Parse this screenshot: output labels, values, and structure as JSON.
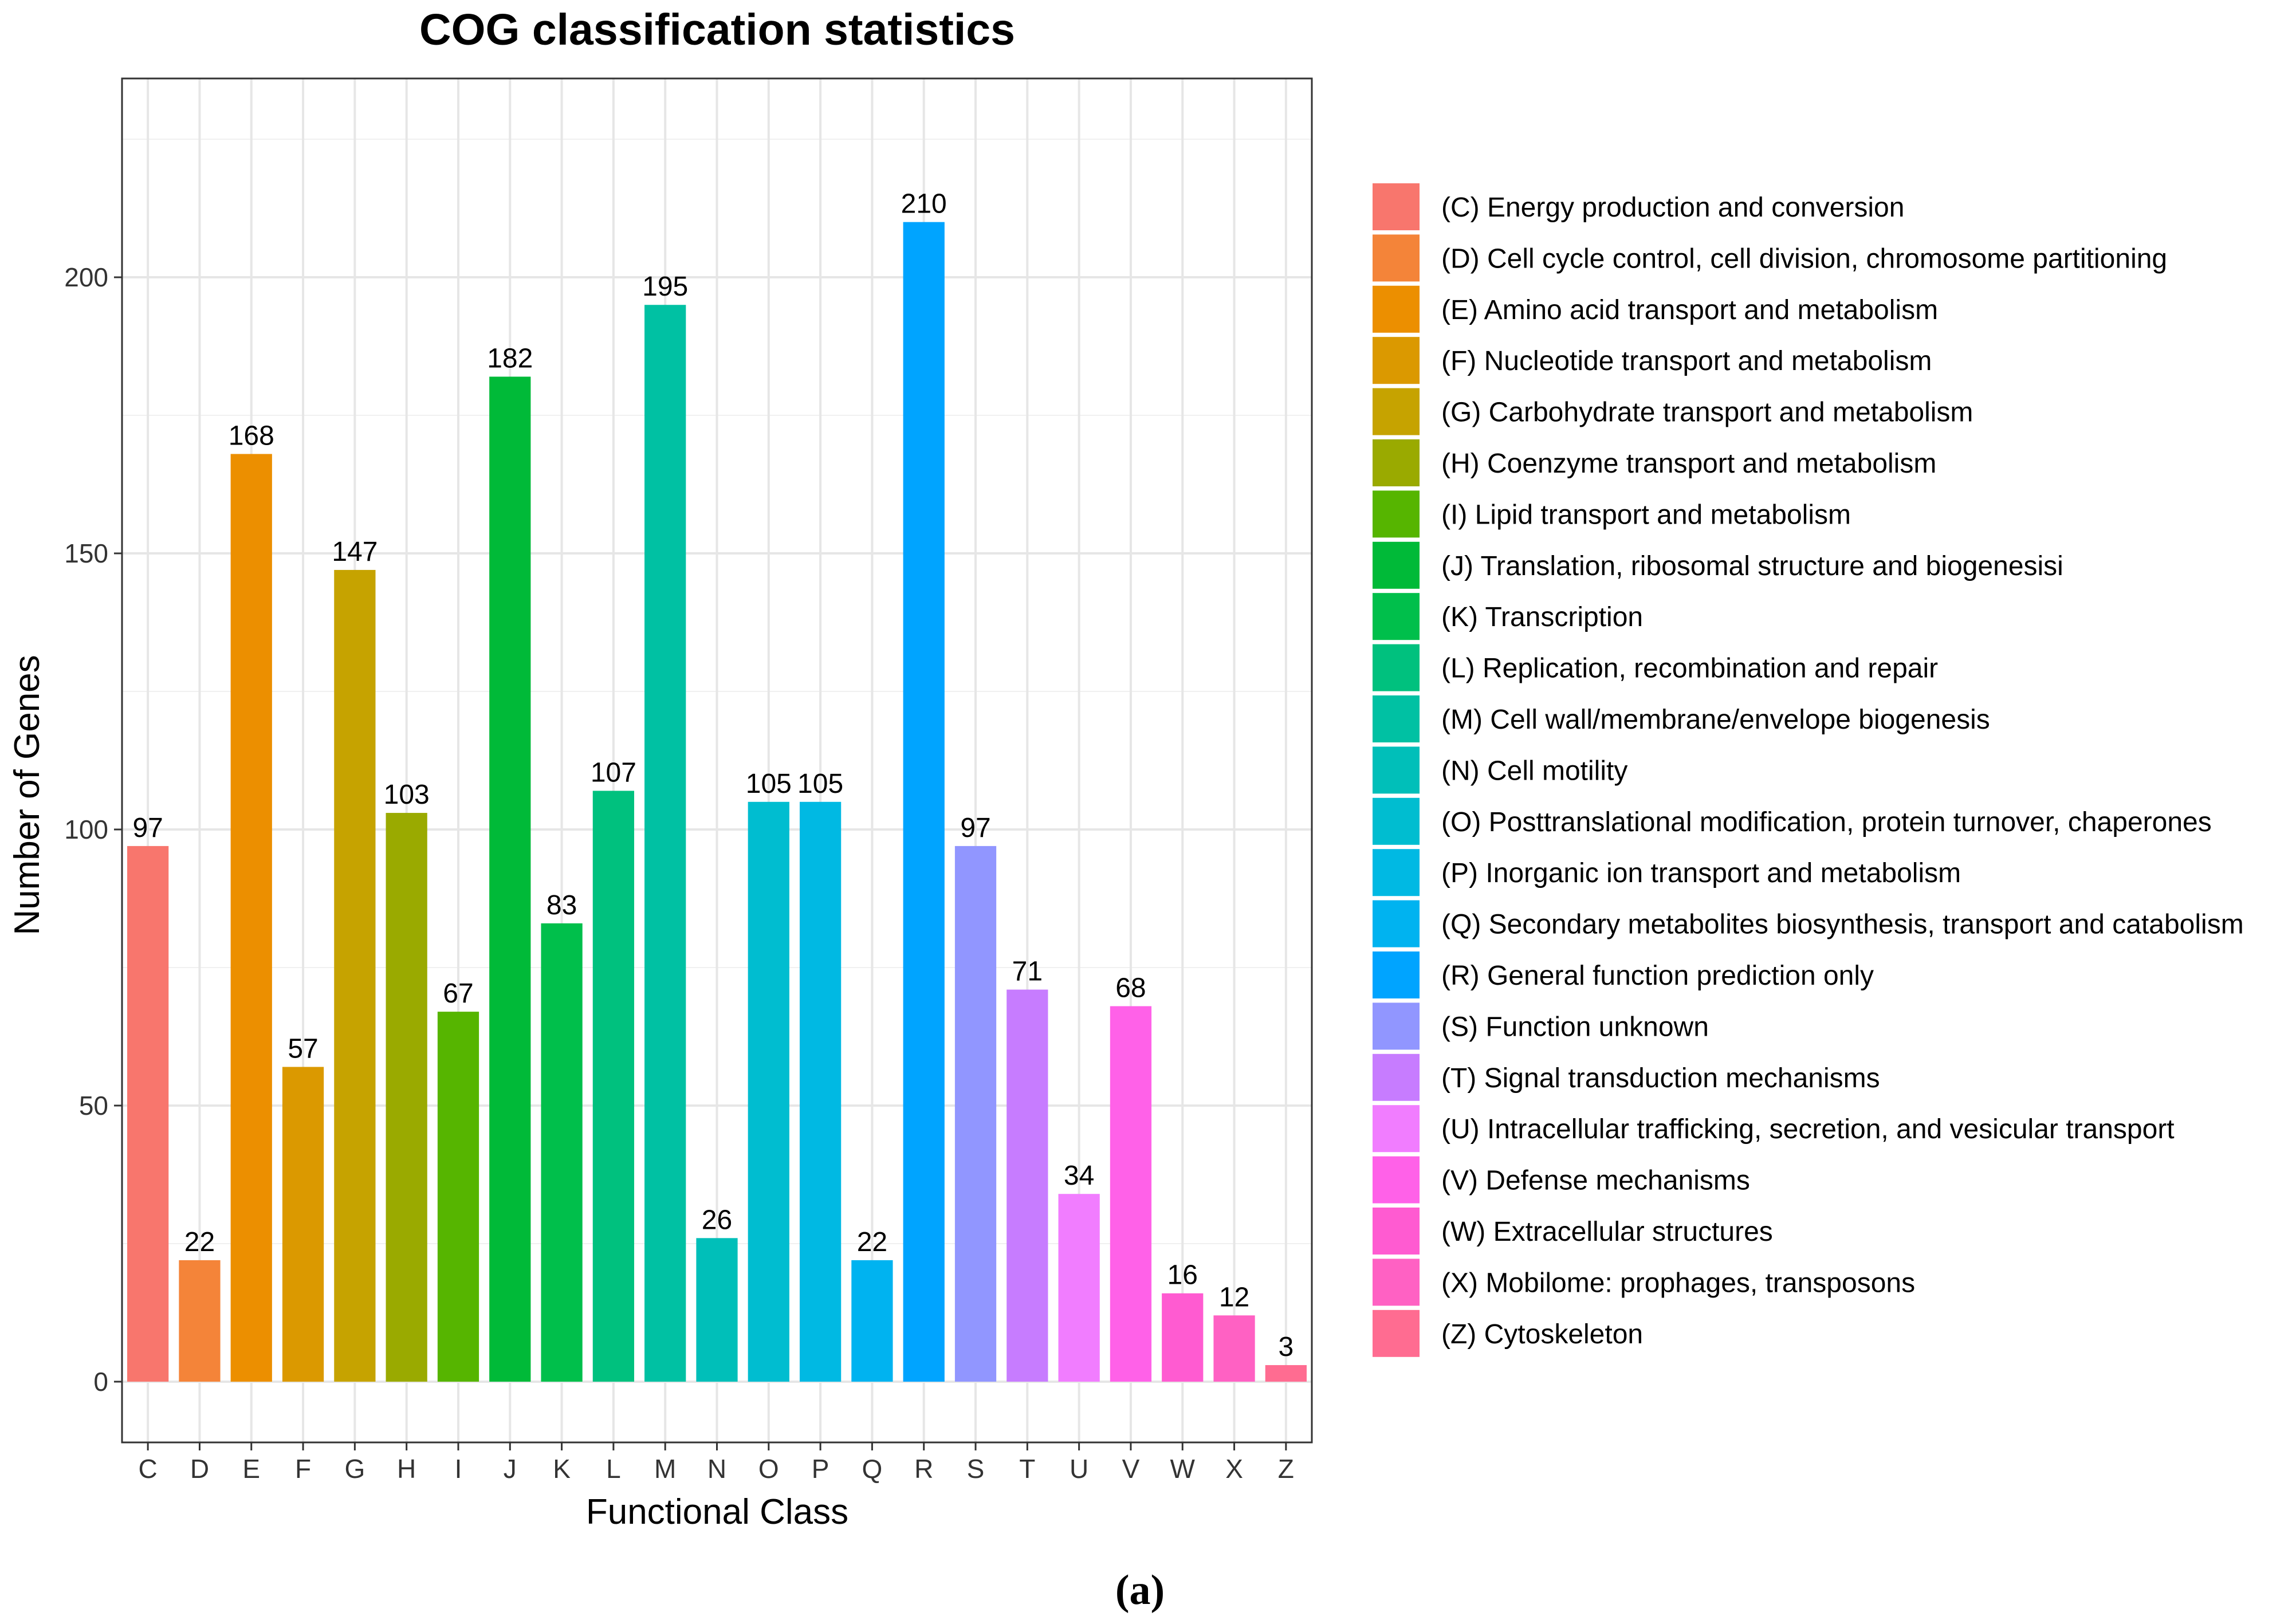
{
  "chart_data": {
    "type": "bar",
    "title": "COG classification statistics",
    "xlabel": "Functional Class",
    "ylabel": "Number of Genes",
    "ylim": [
      -11,
      236
    ],
    "yticks": [
      0,
      50,
      100,
      150,
      200
    ],
    "grid": true,
    "legend_position": "right",
    "categories": [
      "C",
      "D",
      "E",
      "F",
      "G",
      "H",
      "I",
      "J",
      "K",
      "L",
      "M",
      "N",
      "O",
      "P",
      "Q",
      "R",
      "S",
      "T",
      "U",
      "V",
      "W",
      "X",
      "Z"
    ],
    "values": [
      97,
      22,
      168,
      57,
      147,
      103,
      67,
      182,
      83,
      107,
      195,
      26,
      105,
      105,
      22,
      210,
      97,
      71,
      34,
      68,
      16,
      12,
      3
    ],
    "colors": [
      "#F8766D",
      "#F48439",
      "#EC8F00",
      "#DB9900",
      "#C6A300",
      "#9AAA00",
      "#56B500",
      "#00BA38",
      "#00BF4B",
      "#00C17E",
      "#00C1A3",
      "#00BFB9",
      "#00BDD0",
      "#00B9E3",
      "#00B3F0",
      "#00A4FF",
      "#9196FF",
      "#C77CFF",
      "#F17DFF",
      "#FF61E8",
      "#FF5BD1",
      "#FF61C3",
      "#FF6C91"
    ],
    "legend": [
      "(C) Energy production and conversion",
      "(D) Cell cycle control, cell division, chromosome partitioning",
      "(E) Amino acid transport and metabolism",
      "(F) Nucleotide transport and metabolism",
      "(G) Carbohydrate transport and metabolism",
      "(H) Coenzyme transport and metabolism",
      "(I) Lipid transport and metabolism",
      "(J) Translation, ribosomal structure and biogenesisi",
      "(K) Transcription",
      "(L) Replication, recombination and repair",
      "(M) Cell wall/membrane/envelope biogenesis",
      "(N) Cell motility",
      "(O) Posttranslational modification, protein turnover, chaperones",
      "(P) Inorganic ion transport and metabolism",
      "(Q) Secondary metabolites biosynthesis, transport and catabolism",
      "(R) General function prediction only",
      "(S) Function unknown",
      "(T) Signal transduction mechanisms",
      "(U) Intracellular trafficking, secretion, and vesicular transport",
      "(V) Defense mechanisms",
      "(W) Extracellular structures",
      "(X) Mobilome: prophages, transposons",
      "(Z) Cytoskeleton"
    ]
  },
  "caption": "(a)"
}
